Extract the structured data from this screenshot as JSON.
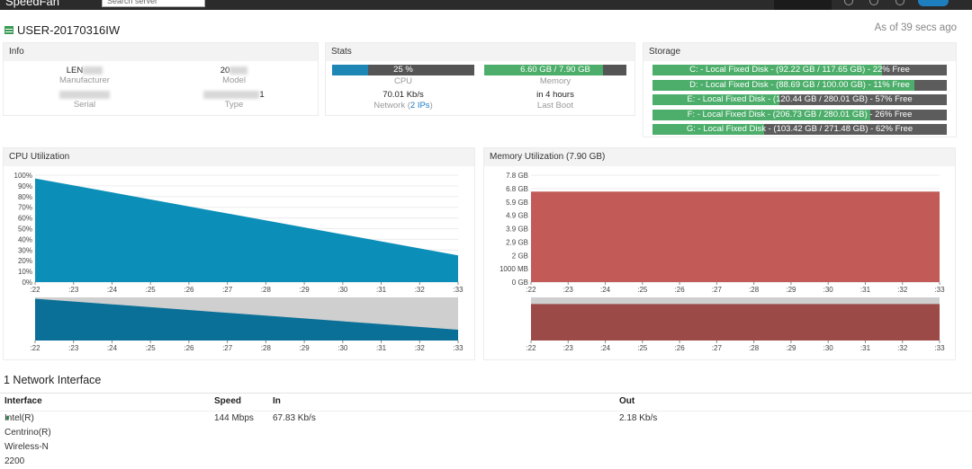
{
  "topbar": {
    "logo_text": "SpeedFan",
    "search_placeholder": "Search server"
  },
  "server": {
    "name": "USER-20170316IW",
    "updated": "As of 39 secs ago"
  },
  "info": {
    "title": "Info",
    "manufacturer_value": "LEN",
    "manufacturer_label": "Manufacturer",
    "model_value": "20",
    "model_label": "Model",
    "serial_label": "Serial",
    "type_value": "1",
    "type_label": "Type"
  },
  "stats": {
    "title": "Stats",
    "cpu_bar": "25 %",
    "cpu_fraction": 0.25,
    "cpu_label": "CPU",
    "mem_bar": "6.60 GB / 7.90 GB",
    "mem_fraction": 0.835,
    "mem_label": "Memory",
    "network_value": "70.01 Kb/s",
    "network_label": "Network (",
    "network_link": "2 IPs",
    "network_close": ")",
    "boot_value": "in 4 hours",
    "boot_label": "Last Boot"
  },
  "storage": {
    "title": "Storage",
    "disks": [
      {
        "label": "C: - Local Fixed Disk - (92.22 GB / 117.65 GB) - 22% Free",
        "used": 0.78
      },
      {
        "label": "D: - Local Fixed Disk - (88.69 GB / 100.00 GB) - 11% Free",
        "used": 0.89
      },
      {
        "label": "E: - Local Fixed Disk - (120.44 GB / 280.01 GB) - 57% Free",
        "used": 0.43
      },
      {
        "label": "F: - Local Fixed Disk - (206.73 GB / 280.01 GB) - 26% Free",
        "used": 0.74
      },
      {
        "label": "G: - Local Fixed Disk - (103.42 GB / 271.48 GB) - 62% Free",
        "used": 0.38
      }
    ]
  },
  "colors": {
    "cpu": "#0b8fb8",
    "cpu_dark": "#0a7097",
    "mem": "#c25b58",
    "mem_dark": "#9c4a48",
    "disk_used": "#4cae6a",
    "disk_free": "#5c5c5c",
    "stat_fill_cpu": "#1e86b5",
    "stat_fill_mem": "#4cae6a",
    "stat_track": "#555555"
  },
  "cpu_chart": {
    "title": "CPU Utilization",
    "y_ticks": [
      "100%",
      "90%",
      "80%",
      "70%",
      "60%",
      "50%",
      "40%",
      "30%",
      "20%",
      "10%",
      "0%"
    ],
    "x_ticks": [
      ":22",
      ":23",
      ":24",
      ":25",
      ":26",
      ":27",
      ":28",
      ":29",
      ":30",
      ":31",
      ":32",
      ":33"
    ]
  },
  "mem_chart": {
    "title": "Memory Utilization (7.90 GB)",
    "y_ticks": [
      "7.8 GB",
      "6.8 GB",
      "5.9 GB",
      "4.9 GB",
      "3.9 GB",
      "2.9 GB",
      "2 GB",
      "1000 MB",
      "0 GB"
    ],
    "x_ticks": [
      ":22",
      ":23",
      ":24",
      ":25",
      ":26",
      ":27",
      ":28",
      ":29",
      ":30",
      ":31",
      ":32",
      ":33"
    ]
  },
  "chart_data": [
    {
      "type": "area",
      "title": "CPU Utilization",
      "x": [
        ":22",
        ":33"
      ],
      "series": [
        {
          "values": [
            97,
            25
          ]
        }
      ],
      "ylim": [
        0,
        100
      ],
      "grid": true
    },
    {
      "type": "area",
      "title": "Memory Utilization (7.90 GB)",
      "x": [
        ":22",
        ":33"
      ],
      "series": [
        {
          "values": [
            6.6,
            6.6
          ]
        }
      ],
      "ylim": [
        0,
        7.8
      ],
      "grid": true
    }
  ],
  "network": {
    "title": "1 Network Interface",
    "headers": [
      "Interface",
      "Speed",
      "In",
      "Out"
    ],
    "rows": [
      [
        "Intel(R) Centrino(R) Wireless-N 2200",
        "144 Mbps",
        "67.83 Kb/s",
        "2.18 Kb/s"
      ]
    ]
  }
}
